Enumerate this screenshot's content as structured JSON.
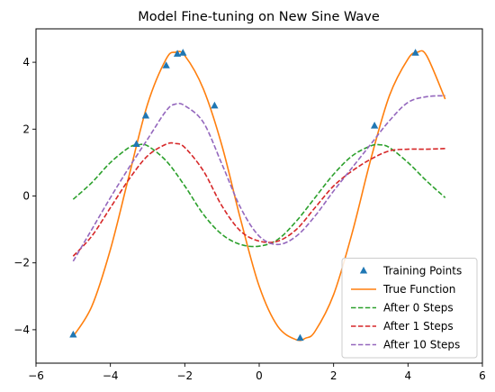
{
  "chart_data": {
    "type": "line",
    "title": "Model Fine-tuning on New Sine Wave",
    "xlabel": "",
    "ylabel": "",
    "xlim": [
      -6,
      6
    ],
    "ylim": [
      -5,
      5
    ],
    "xticks": [
      -6,
      -4,
      -2,
      0,
      2,
      4,
      6
    ],
    "yticks": [
      -4,
      -2,
      0,
      2,
      4
    ],
    "grid": false,
    "legend_position": "lower-right",
    "training_points": {
      "name": "Training Points",
      "color": "#1f77b4",
      "marker": "triangle",
      "x": [
        -5.0,
        -3.3,
        -3.05,
        -2.5,
        -2.2,
        -2.05,
        -1.2,
        1.1,
        3.1,
        4.2
      ],
      "y": [
        -4.15,
        1.55,
        2.4,
        3.9,
        4.25,
        4.28,
        2.7,
        -4.25,
        2.1,
        4.28
      ]
    },
    "series": [
      {
        "name": "True Function",
        "color": "#ff7f0e",
        "style": "solid",
        "x": [
          -5,
          -4.5,
          -4,
          -3.5,
          -3,
          -2.5,
          -2.25,
          -2,
          -1.5,
          -1,
          -0.5,
          0,
          0.5,
          1,
          1.25,
          1.5,
          2,
          2.5,
          3,
          3.5,
          4,
          4.25,
          4.5,
          5
        ],
        "y": [
          -4.2,
          -3.3,
          -1.6,
          0.6,
          2.75,
          4.1,
          4.3,
          4.2,
          3.2,
          1.5,
          -0.7,
          -2.7,
          -3.9,
          -4.3,
          -4.25,
          -4.05,
          -2.95,
          -1.1,
          1.1,
          3.0,
          4.1,
          4.3,
          4.2,
          2.9
        ]
      },
      {
        "name": "After 0 Steps",
        "color": "#2ca02c",
        "style": "dashed",
        "x": [
          -5,
          -4.5,
          -4,
          -3.5,
          -3.25,
          -3,
          -2.5,
          -2,
          -1.5,
          -1,
          -0.5,
          0,
          0.5,
          1,
          1.5,
          2,
          2.5,
          3,
          3.25,
          3.5,
          4,
          4.5,
          5
        ],
        "y": [
          -0.1,
          0.4,
          1.0,
          1.45,
          1.53,
          1.5,
          1.05,
          0.3,
          -0.55,
          -1.15,
          -1.45,
          -1.5,
          -1.3,
          -0.75,
          -0.05,
          0.65,
          1.2,
          1.5,
          1.53,
          1.45,
          1.0,
          0.45,
          -0.05
        ]
      },
      {
        "name": "After 1 Steps",
        "color": "#d62728",
        "style": "dashed",
        "x": [
          -5,
          -4.5,
          -4,
          -3.5,
          -3,
          -2.5,
          -2.25,
          -2,
          -1.5,
          -1,
          -0.5,
          0,
          0.5,
          1,
          1.5,
          2,
          2.5,
          3,
          3.5,
          4,
          4.5,
          5
        ],
        "y": [
          -1.8,
          -1.2,
          -0.35,
          0.5,
          1.2,
          1.55,
          1.57,
          1.45,
          0.75,
          -0.3,
          -1.05,
          -1.35,
          -1.35,
          -1.0,
          -0.35,
          0.3,
          0.75,
          1.1,
          1.35,
          1.4,
          1.4,
          1.42
        ]
      },
      {
        "name": "After 10 Steps",
        "color": "#9467bd",
        "style": "dashed",
        "x": [
          -5,
          -4.5,
          -4,
          -3.5,
          -3,
          -2.5,
          -2.25,
          -2,
          -1.5,
          -1,
          -0.5,
          0,
          0.5,
          1,
          1.5,
          2,
          2.5,
          3,
          3.5,
          4,
          4.5,
          5
        ],
        "y": [
          -1.95,
          -1.0,
          -0.05,
          0.85,
          1.7,
          2.55,
          2.75,
          2.7,
          2.2,
          0.95,
          -0.35,
          -1.2,
          -1.45,
          -1.2,
          -0.6,
          0.15,
          0.85,
          1.55,
          2.25,
          2.8,
          2.97,
          3.0
        ]
      }
    ]
  }
}
